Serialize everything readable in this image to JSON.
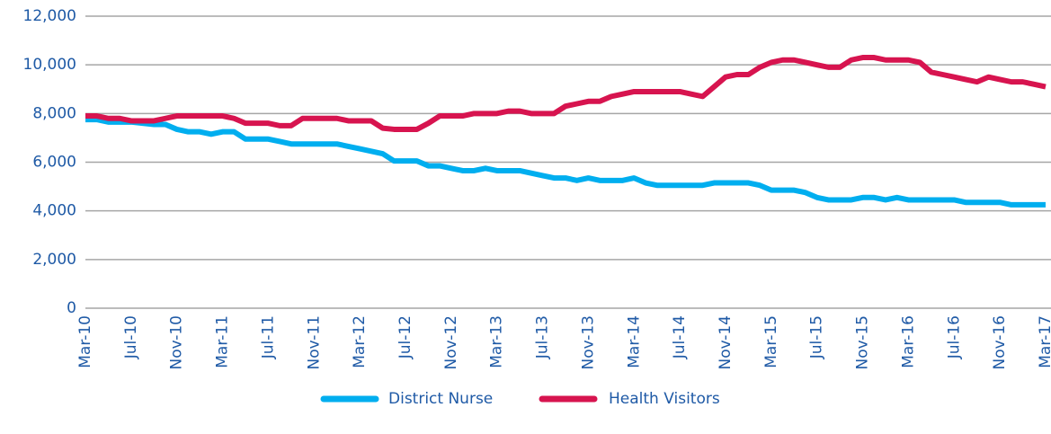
{
  "chart_data": {
    "type": "line",
    "categories": [
      "Mar-10",
      null,
      null,
      null,
      "Jul-10",
      null,
      null,
      null,
      "Nov-10",
      null,
      null,
      null,
      "Mar-11",
      null,
      null,
      null,
      "Jul-11",
      null,
      null,
      null,
      "Nov-11",
      null,
      null,
      null,
      "Mar-12",
      null,
      null,
      null,
      "Jul-12",
      null,
      null,
      null,
      "Nov-12",
      null,
      null,
      null,
      "Mar-13",
      null,
      null,
      null,
      "Jul-13",
      null,
      null,
      null,
      "Nov-13",
      null,
      null,
      null,
      "Mar-14",
      null,
      null,
      null,
      "Jul-14",
      null,
      null,
      null,
      "Nov-14",
      null,
      null,
      null,
      "Mar-15",
      null,
      null,
      null,
      "Jul-15",
      null,
      null,
      null,
      "Nov-15",
      null,
      null,
      null,
      "Mar-16",
      null,
      null,
      null,
      "Jul-16",
      null,
      null,
      null,
      "Nov-16",
      null,
      null,
      null,
      "Mar-17"
    ],
    "series": [
      {
        "name": "District Nurse",
        "color": "#00aeef",
        "values": [
          7750,
          7750,
          7650,
          7650,
          7650,
          7600,
          7550,
          7550,
          7350,
          7250,
          7250,
          7150,
          7250,
          7250,
          6950,
          6950,
          6950,
          6850,
          6750,
          6750,
          6750,
          6750,
          6750,
          6650,
          6550,
          6450,
          6350,
          6050,
          6050,
          6050,
          5850,
          5850,
          5750,
          5650,
          5650,
          5750,
          5650,
          5650,
          5650,
          5550,
          5450,
          5350,
          5350,
          5250,
          5350,
          5250,
          5250,
          5250,
          5350,
          5150,
          5050,
          5050,
          5050,
          5050,
          5050,
          5150,
          5150,
          5150,
          5150,
          5050,
          4850,
          4850,
          4850,
          4750,
          4550,
          4450,
          4450,
          4450,
          4550,
          4550,
          4450,
          4550,
          4450,
          4450,
          4450,
          4450,
          4450,
          4350,
          4350,
          4350,
          4350,
          4250,
          4250,
          4250,
          4250
        ]
      },
      {
        "name": "Health Visitors",
        "color": "#d7144f",
        "values": [
          7900,
          7900,
          7800,
          7800,
          7700,
          7700,
          7700,
          7800,
          7900,
          7900,
          7900,
          7900,
          7900,
          7800,
          7600,
          7600,
          7600,
          7500,
          7500,
          7800,
          7800,
          7800,
          7800,
          7700,
          7700,
          7700,
          7400,
          7350,
          7350,
          7350,
          7600,
          7900,
          7900,
          7900,
          8000,
          8000,
          8000,
          8100,
          8100,
          8000,
          8000,
          8000,
          8300,
          8400,
          8500,
          8500,
          8700,
          8800,
          8900,
          8900,
          8900,
          8900,
          8900,
          8800,
          8700,
          9100,
          9500,
          9600,
          9600,
          9900,
          10100,
          10200,
          10200,
          10100,
          10000,
          9900,
          9900,
          10200,
          10300,
          10300,
          10200,
          10200,
          10200,
          10100,
          9700,
          9600,
          9500,
          9400,
          9300,
          9500,
          9400,
          9300,
          9300,
          9200,
          9100
        ]
      }
    ],
    "ylim": [
      0,
      12000
    ],
    "yticks": [
      0,
      {
        "value": 2000,
        "label": "2,000"
      },
      {
        "value": 4000,
        "label": "4,000"
      },
      {
        "value": 6000,
        "label": "6,000"
      },
      {
        "value": 8000,
        "label": "8,000"
      },
      {
        "value": 10000,
        "label": "10,000"
      },
      {
        "value": 12000,
        "label": "12,000"
      }
    ],
    "grid": true,
    "legend": "bottom"
  }
}
